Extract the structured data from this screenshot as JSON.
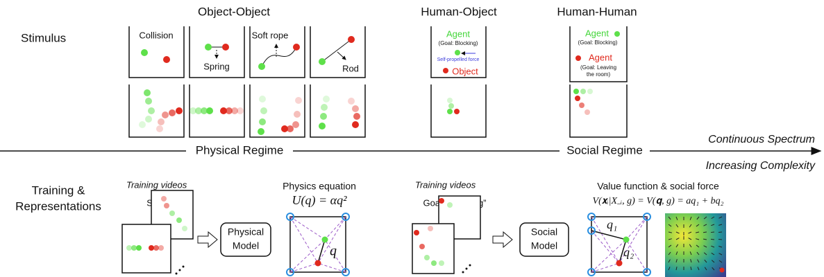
{
  "columns": {
    "object_object": "Object-Object",
    "human_object": "Human-Object",
    "human_human": "Human-Human"
  },
  "rows": {
    "stimulus": "Stimulus",
    "training": [
      "Training &",
      "Representations"
    ]
  },
  "stimuli": {
    "collision": "Collision",
    "spring": "Spring",
    "soft_rope": "Soft rope",
    "rod": "Rod"
  },
  "human_object": {
    "agent": "Agent",
    "goal": "(Goal: Blocking)",
    "force": "Self-propelled force",
    "object": "Object"
  },
  "human_human": {
    "agent1": "Agent",
    "goal1": "(Goal: Blocking)",
    "agent2": "Agent",
    "goal2": [
      "(Goal: Leaving",
      "the room)"
    ]
  },
  "spectrum": {
    "physical": "Physical Regime",
    "social": "Social Regime",
    "continuous": "Continuous Spectrum",
    "complexity": "Increasing Complexity"
  },
  "physical": {
    "videos": "Training videos",
    "video_label": "Spring",
    "model": [
      "Physical",
      "Model"
    ],
    "equation_title": "Physics equation",
    "equation": "U(q) = αq²",
    "q": "q"
  },
  "social": {
    "videos": "Training videos",
    "goal": "Goal: “blocking”",
    "model": [
      "Social",
      "Model"
    ],
    "value_title": "Value function & social force",
    "equation": "V(𝐱ᵢ|X₋ᵢ, g) = V(𝐪, g) = aq₁ + bq₂",
    "q1": "q₁",
    "q2": "q₂"
  }
}
